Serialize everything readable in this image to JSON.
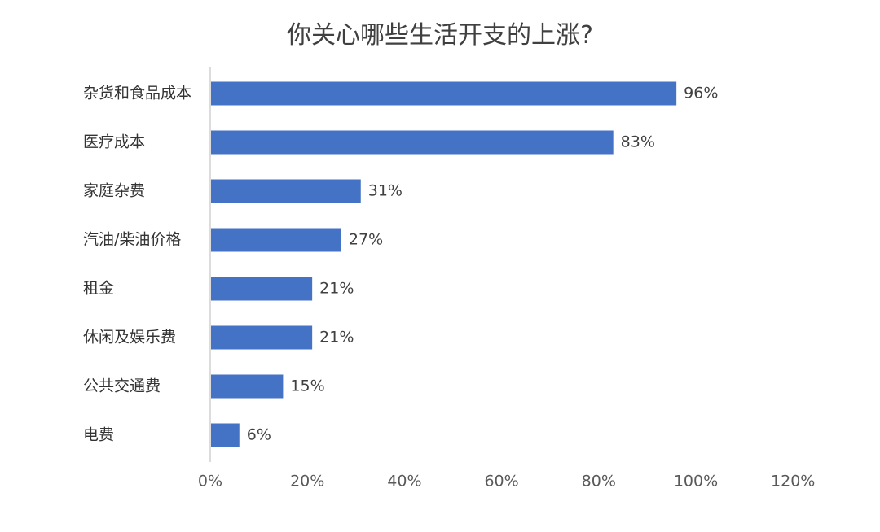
{
  "chart_data": {
    "type": "bar",
    "orientation": "horizontal",
    "title": "你关心哪些生活开支的上涨?",
    "categories": [
      "杂货和食品成本",
      "医疗成本",
      "家庭杂费",
      "汽油/柴油价格",
      "租金",
      "休闲及娱乐费",
      "公共交通费",
      "电费"
    ],
    "values": [
      96,
      83,
      31,
      27,
      21,
      21,
      15,
      6
    ],
    "value_labels": [
      "96%",
      "83%",
      "31%",
      "27%",
      "21%",
      "21%",
      "15%",
      "6%"
    ],
    "xlim": [
      0,
      120
    ],
    "xticks": [
      0,
      20,
      40,
      60,
      80,
      100,
      120
    ],
    "xtick_labels": [
      "0%",
      "20%",
      "40%",
      "60%",
      "80%",
      "100%",
      "120%"
    ],
    "bar_color": "#4472C4",
    "grid": false,
    "legend": "none"
  }
}
